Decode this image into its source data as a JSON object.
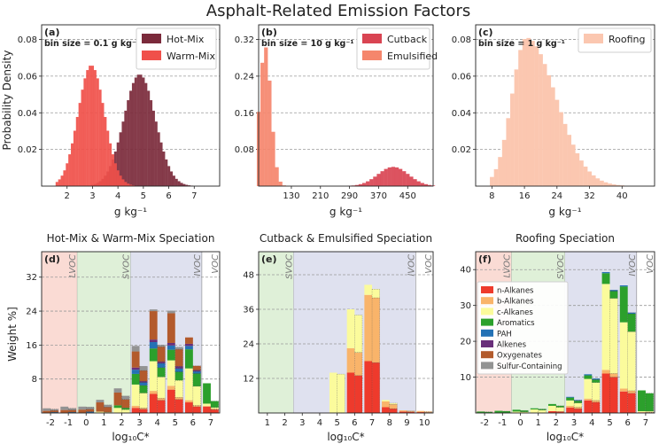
{
  "title": "Asphalt-Related Emission Factors",
  "colors": {
    "hot_mix": "#7b2a3b",
    "warm_mix": "#f0504a",
    "cutback": "#d94452",
    "emulsified": "#f5866c",
    "roofing": "#fbc7b0",
    "lvoc_band": "#fadbd4",
    "svoc_band": "#dff0d8",
    "ivoc_band": "#dfe1ef"
  },
  "ylabel_top": "Probability Density",
  "ylabel_bottom": "Weight %]",
  "panels_top": [
    {
      "letter": "(a)",
      "bin": "bin size = 0.1 g kg⁻¹",
      "xlabel": "g kg⁻¹",
      "xlim": [
        1.0,
        8.0
      ],
      "ylim": [
        0,
        0.088
      ],
      "xticks": [
        {
          "v": 2,
          "t": "2"
        },
        {
          "v": 3,
          "t": "3"
        },
        {
          "v": 4,
          "t": "4"
        },
        {
          "v": 5,
          "t": "5"
        },
        {
          "v": 6,
          "t": "6"
        },
        {
          "v": 7,
          "t": "7"
        }
      ],
      "yticks": [
        {
          "v": 0.02,
          "t": "0.02"
        },
        {
          "v": 0.04,
          "t": "0.04"
        },
        {
          "v": 0.06,
          "t": "0.06"
        },
        {
          "v": 0.08,
          "t": "0.08"
        }
      ],
      "series": [
        {
          "name": "Hot-Mix",
          "mean": 4.85,
          "sd": 0.62,
          "peak": 0.061,
          "lo": 3.0,
          "hi": 7.6,
          "step": 0.1
        },
        {
          "name": "Warm-Mix",
          "mean": 2.95,
          "sd": 0.52,
          "peak": 0.066,
          "lo": 1.6,
          "hi": 5.3,
          "step": 0.1
        }
      ]
    },
    {
      "letter": "(b)",
      "bin": "bin size = 10 g kg⁻¹",
      "xlabel": "g kg⁻¹",
      "xlim": [
        40,
        520
      ],
      "ylim": [
        0,
        0.352
      ],
      "xticks": [
        {
          "v": 130,
          "t": "130"
        },
        {
          "v": 210,
          "t": "210"
        },
        {
          "v": 290,
          "t": "290"
        },
        {
          "v": 370,
          "t": "370"
        },
        {
          "v": 450,
          "t": "450"
        }
      ],
      "yticks": [
        {
          "v": 0.08,
          "t": "0.08"
        },
        {
          "v": 0.16,
          "t": "0.16"
        },
        {
          "v": 0.24,
          "t": "0.24"
        },
        {
          "v": 0.32,
          "t": "0.32"
        }
      ],
      "series": [
        {
          "name": "Cutback",
          "mean": 410,
          "sd": 42,
          "peak": 0.042,
          "lo": 270,
          "hi": 520,
          "step": 10
        },
        {
          "name": "Emulsified",
          "mean": 58,
          "sd": 16,
          "peak": 0.305,
          "lo": 40,
          "hi": 110,
          "step": 10
        }
      ]
    },
    {
      "letter": "(c)",
      "bin": "bin size = 1 g kg⁻¹",
      "xlabel": "g kg⁻¹",
      "xlim": [
        4,
        48
      ],
      "ylim": [
        0,
        0.088
      ],
      "xticks": [
        {
          "v": 8,
          "t": "8"
        },
        {
          "v": 16,
          "t": "16"
        },
        {
          "v": 24,
          "t": "24"
        },
        {
          "v": 32,
          "t": "32"
        },
        {
          "v": 40,
          "t": "40"
        }
      ],
      "yticks": [
        {
          "v": 0.02,
          "t": "0.02"
        },
        {
          "v": 0.04,
          "t": "0.04"
        },
        {
          "v": 0.06,
          "t": "0.06"
        },
        {
          "v": 0.08,
          "t": "0.08"
        }
      ],
      "series": [
        {
          "name": "Roofing",
          "mean": 16.5,
          "sd": 3.6,
          "peak": 0.081,
          "lo": 8,
          "hi": 40,
          "step": 1,
          "skew": 2.0
        }
      ]
    }
  ],
  "panels_bottom": [
    {
      "letter": "(d)",
      "title": "Hot-Mix & Warm-Mix Speciation",
      "xlabel": "log₁₀C*",
      "xlim": [
        -2.5,
        7.5
      ],
      "ylim": [
        0,
        38
      ],
      "yticks": [
        {
          "v": 8,
          "t": "8"
        },
        {
          "v": 16,
          "t": "16"
        },
        {
          "v": 24,
          "t": "24"
        },
        {
          "v": 32,
          "t": "32"
        }
      ],
      "xticks": [
        -2,
        -1,
        0,
        1,
        2,
        3,
        4,
        5,
        6,
        7
      ],
      "bands": [
        {
          "type": "lvoc",
          "from": -2.5,
          "to": -0.5,
          "label": "LVOC"
        },
        {
          "type": "svoc",
          "from": -0.5,
          "to": 2.5,
          "label": "SVOC"
        },
        {
          "type": "ivoc",
          "from": 2.5,
          "to": 6.5,
          "label": "IVOC"
        },
        {
          "type": "voc",
          "from": 6.5,
          "to": 7.5,
          "label": "VOC"
        }
      ],
      "groups": [
        {
          "x": -2,
          "hot": [
            0,
            0,
            0,
            0,
            0,
            0,
            0.5,
            0.6
          ],
          "warm": [
            0,
            0,
            0,
            0,
            0.2,
            0,
            0.4,
            0.3
          ]
        },
        {
          "x": -1,
          "hot": [
            0,
            0,
            0,
            0,
            0,
            0,
            0.7,
            0.8
          ],
          "warm": [
            0,
            0,
            0,
            0,
            0.2,
            0,
            0.5,
            0.4
          ]
        },
        {
          "x": 0,
          "hot": [
            0,
            0,
            0,
            0,
            0,
            0,
            0.8,
            0.7
          ],
          "warm": [
            0,
            0,
            0,
            0,
            0.3,
            0,
            0.6,
            0.5
          ]
        },
        {
          "x": 1,
          "hot": [
            0,
            0,
            0.3,
            0,
            0,
            0,
            2.2,
            0.6
          ],
          "warm": [
            0,
            0,
            0.2,
            0,
            0,
            0,
            1.2,
            0.5
          ]
        },
        {
          "x": 2,
          "hot": [
            0,
            0,
            1.2,
            0.6,
            0,
            0,
            3.0,
            1.0
          ],
          "warm": [
            0,
            0,
            0.8,
            0.4,
            0,
            0,
            2.0,
            0.8
          ]
        },
        {
          "x": 3,
          "hot": [
            1.2,
            0.5,
            5.0,
            2.5,
            1.0,
            0.5,
            3.8,
            1.3
          ],
          "warm": [
            0.9,
            0.3,
            3.5,
            1.8,
            0.7,
            0.3,
            2.5,
            1.0
          ]
        },
        {
          "x": 4,
          "hot": [
            4.5,
            0.7,
            7.0,
            3.0,
            1.5,
            0.6,
            6.7,
            0.4
          ],
          "warm": [
            3.0,
            0.5,
            5.0,
            2.2,
            1.0,
            0.4,
            3.5,
            0.4
          ]
        },
        {
          "x": 5,
          "hot": [
            5.5,
            0.9,
            6.0,
            2.5,
            1.0,
            0.6,
            7.0,
            0.6
          ],
          "warm": [
            3.2,
            0.5,
            4.0,
            2.0,
            0.8,
            0.5,
            4.0,
            0.5
          ]
        },
        {
          "x": 6,
          "hot": [
            2.5,
            0.5,
            7.5,
            4.5,
            0.8,
            0.5,
            1.5,
            0
          ],
          "warm": [
            1.5,
            0.3,
            4.5,
            3.0,
            0.5,
            0.3,
            1.0,
            0
          ]
        },
        {
          "x": 7,
          "hot": [
            1.5,
            0.2,
            0.5,
            4.8,
            0,
            0,
            0,
            0
          ],
          "warm": [
            0.8,
            0.2,
            0.3,
            1.5,
            0,
            0,
            0,
            0
          ]
        }
      ]
    },
    {
      "letter": "(e)",
      "title": "Cutback & Emulsified Speciation",
      "xlabel": "log₁₀C*",
      "xlim": [
        0.5,
        10.5
      ],
      "ylim": [
        0,
        56
      ],
      "yticks": [
        {
          "v": 12,
          "t": "12"
        },
        {
          "v": 24,
          "t": "24"
        },
        {
          "v": 36,
          "t": "36"
        },
        {
          "v": 48,
          "t": "48"
        }
      ],
      "xticks": [
        1,
        2,
        3,
        4,
        5,
        6,
        7,
        8,
        9,
        10
      ],
      "bands": [
        {
          "type": "svoc",
          "from": 0.5,
          "to": 2.5,
          "label": "SVOC"
        },
        {
          "type": "ivoc",
          "from": 2.5,
          "to": 9.5,
          "label": "IVOC"
        },
        {
          "type": "voc",
          "from": 9.5,
          "to": 10.5,
          "label": "VOC"
        }
      ],
      "groups": [
        {
          "x": 5,
          "hot": [
            0,
            0,
            14.0,
            0,
            0,
            0,
            0,
            0
          ],
          "warm": [
            0,
            0,
            13.5,
            0,
            0,
            0,
            0,
            0
          ]
        },
        {
          "x": 6,
          "hot": [
            14.0,
            8.5,
            13.5,
            0,
            0,
            0,
            0,
            0
          ],
          "warm": [
            13.0,
            8.0,
            13.0,
            0,
            0,
            0,
            0,
            0
          ]
        },
        {
          "x": 7,
          "hot": [
            18.0,
            23.0,
            3.5,
            0,
            0,
            0,
            0,
            0
          ],
          "warm": [
            17.5,
            22.5,
            3.0,
            0,
            0,
            0,
            0,
            0
          ]
        },
        {
          "x": 8,
          "hot": [
            2.0,
            2.0,
            0.5,
            0,
            0,
            0,
            0,
            0
          ],
          "warm": [
            1.5,
            1.5,
            0.4,
            0,
            0,
            0,
            0,
            0
          ]
        },
        {
          "x": 9,
          "hot": [
            0.5,
            0.4,
            0,
            0,
            0,
            0,
            0,
            0
          ],
          "warm": [
            0.4,
            0.3,
            0,
            0,
            0,
            0,
            0,
            0
          ]
        },
        {
          "x": 10,
          "hot": [
            0.3,
            0.4,
            0,
            0,
            0,
            0,
            0,
            0
          ],
          "warm": [
            0.2,
            0.3,
            0,
            0,
            0,
            0,
            0,
            0
          ]
        }
      ]
    },
    {
      "letter": "(f)",
      "title": "Roofing Speciation",
      "xlabel": "log₁₀C*",
      "xlim": [
        -2.5,
        7.5
      ],
      "ylim": [
        0,
        45
      ],
      "yticks": [
        {
          "v": 10,
          "t": "10"
        },
        {
          "v": 20,
          "t": "20"
        },
        {
          "v": 30,
          "t": "30"
        },
        {
          "v": 40,
          "t": "40"
        }
      ],
      "xticks": [
        -2,
        -1,
        0,
        1,
        2,
        3,
        4,
        5,
        6,
        7
      ],
      "bands": [
        {
          "type": "lvoc",
          "from": -2.5,
          "to": -0.5,
          "label": "LVOC"
        },
        {
          "type": "svoc",
          "from": -0.5,
          "to": 2.5,
          "label": "SVOC"
        },
        {
          "type": "ivoc",
          "from": 2.5,
          "to": 6.5,
          "label": "IVOC"
        },
        {
          "type": "voc",
          "from": 6.5,
          "to": 7.5,
          "label": "VOC"
        }
      ],
      "groups": [
        {
          "x": -2,
          "hot": [
            0,
            0,
            0,
            0.4,
            0,
            0,
            0,
            0
          ],
          "warm": [
            0,
            0,
            0,
            0.3,
            0,
            0,
            0,
            0
          ]
        },
        {
          "x": -1,
          "hot": [
            0,
            0,
            0,
            0.6,
            0,
            0,
            0,
            0
          ],
          "warm": [
            0,
            0,
            0,
            0.5,
            0,
            0,
            0,
            0
          ]
        },
        {
          "x": 0,
          "hot": [
            0,
            0,
            0.4,
            0.5,
            0,
            0,
            0,
            0
          ],
          "warm": [
            0,
            0,
            0.3,
            0.4,
            0,
            0,
            0,
            0
          ]
        },
        {
          "x": 1,
          "hot": [
            0,
            0,
            1.0,
            0.3,
            0,
            0,
            0,
            0
          ],
          "warm": [
            0,
            0,
            0.8,
            0.3,
            0,
            0,
            0,
            0
          ]
        },
        {
          "x": 2,
          "hot": [
            0.5,
            0,
            1.5,
            0.5,
            0,
            0,
            0,
            0
          ],
          "warm": [
            0.4,
            0,
            1.2,
            0.4,
            0,
            0,
            0,
            0
          ]
        },
        {
          "x": 3,
          "hot": [
            1.5,
            0.5,
            1.5,
            0.8,
            0.2,
            0,
            0,
            0
          ],
          "warm": [
            1.2,
            0.4,
            1.2,
            0.6,
            0.2,
            0,
            0,
            0
          ]
        },
        {
          "x": 4,
          "hot": [
            3.5,
            0.5,
            5.5,
            1.0,
            0.3,
            0,
            0,
            0
          ],
          "warm": [
            3.0,
            0.5,
            5.0,
            0.8,
            0.3,
            0,
            0,
            0
          ]
        },
        {
          "x": 5,
          "hot": [
            11.0,
            1.0,
            24.0,
            3.0,
            0.3,
            0,
            0,
            0
          ],
          "warm": [
            10.0,
            1.0,
            21.0,
            2.0,
            0.3,
            0,
            0,
            0
          ]
        },
        {
          "x": 6,
          "hot": [
            6.0,
            0.8,
            18.5,
            10.0,
            0.3,
            0,
            0,
            0
          ],
          "warm": [
            5.5,
            0.7,
            16.5,
            5.0,
            0.3,
            0,
            0,
            0
          ]
        },
        {
          "x": 7,
          "hot": [
            0.2,
            0,
            0.3,
            5.8,
            0,
            0,
            0,
            0
          ],
          "warm": [
            0.2,
            0,
            0.3,
            5.0,
            0,
            0,
            0,
            0
          ]
        }
      ]
    }
  ],
  "species": [
    {
      "name": "n-Alkanes",
      "color": "#ee3a2c"
    },
    {
      "name": "b-Alkanes",
      "color": "#f9b46a"
    },
    {
      "name": "c-Alkanes",
      "color": "#fbfb9c"
    },
    {
      "name": "Aromatics",
      "color": "#2ca02c"
    },
    {
      "name": "PAH",
      "color": "#2471b5"
    },
    {
      "name": "Alkenes",
      "color": "#6a2e7a"
    },
    {
      "name": "Oxygenates",
      "color": "#b35a2c"
    },
    {
      "name": "Sulfur-Containing",
      "color": "#939393"
    }
  ]
}
